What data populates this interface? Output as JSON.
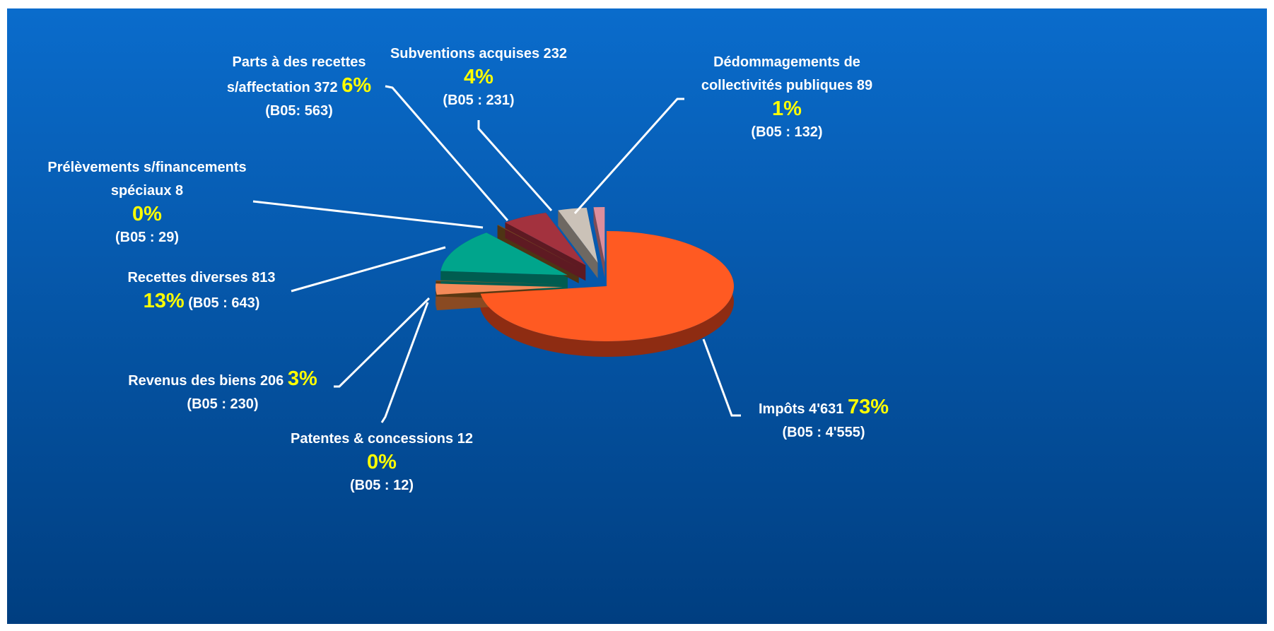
{
  "chart_data": {
    "type": "pie",
    "categories": [
      "Impôts",
      "Revenus des biens",
      "Patentes & concessions",
      "Recettes diverses",
      "Prélèvements s/financements spéciaux",
      "Parts à des recettes s/affectation",
      "Subventions acquises",
      "Dédommagements de collectivités publiques"
    ],
    "values": [
      4631,
      206,
      12,
      813,
      8,
      372,
      232,
      89
    ],
    "value_labels": [
      "4'631",
      "206",
      "12",
      "813",
      "8",
      "372",
      "232",
      "89"
    ],
    "percent_labels": [
      "73%",
      "3%",
      "0%",
      "13%",
      "0%",
      "6%",
      "4%",
      "1%"
    ],
    "b05_labels": [
      "(B05 : 4'555)",
      "(B05 : 230)",
      "(B05 : 12)",
      "(B05 : 643)",
      "(B05 : 29)",
      "(B05: 563)",
      "(B05 : 231)",
      "(B05 : 132)"
    ],
    "colors": [
      "#ff5a22",
      "#f58a58",
      "#8a5a24",
      "#00a58c",
      "#7a5222",
      "#a3323e",
      "#cbc2b8",
      "#dc8e9c"
    ],
    "side_colors": [
      "#8e2c12",
      "#8a4a22",
      "#5a3812",
      "#005c50",
      "#4e3414",
      "#5e1a22",
      "#6e6862",
      "#7c4c56"
    ]
  }
}
